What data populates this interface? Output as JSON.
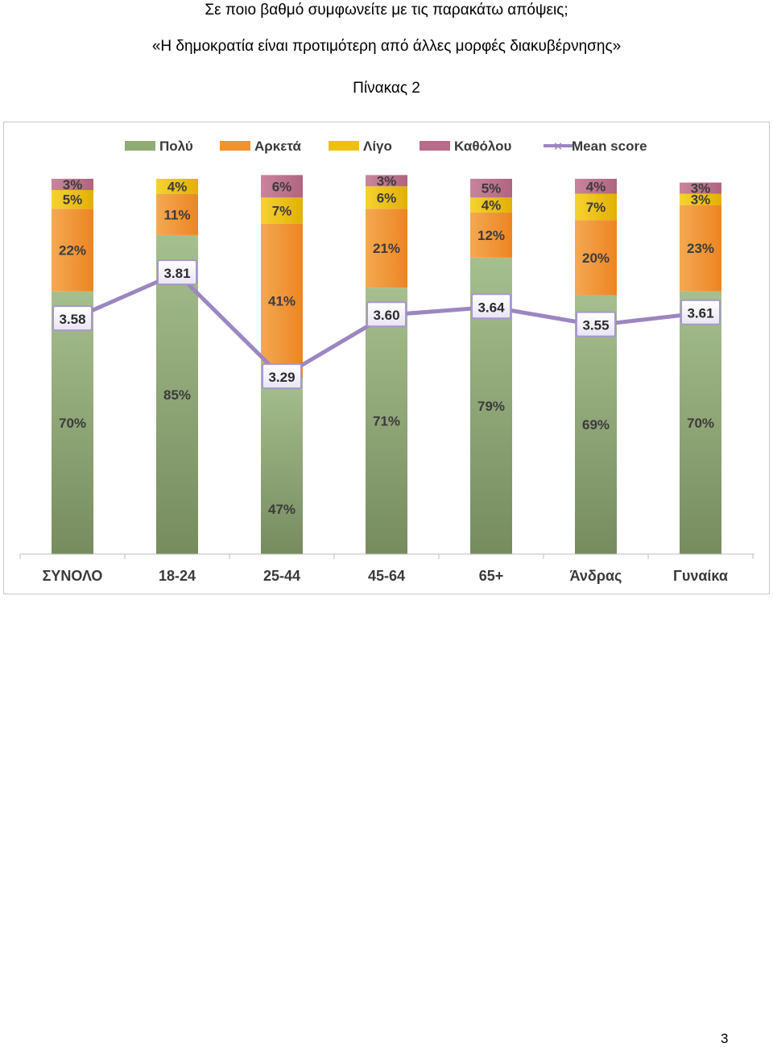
{
  "header": {
    "question": "Σε ποιο βαθμό συμφωνείτε με τις παρακάτω απόψεις;",
    "statement": "«Η δημοκρατία είναι προτιμότερη από άλλες μορφές διακυβέρνησης»",
    "table_title": "Πίνακας 2"
  },
  "page_number": "3",
  "chart_data": {
    "type": "bar",
    "stacked": true,
    "categories": [
      "ΣΥΝΟΛΟ",
      "18-24",
      "25-44",
      "45-64",
      "65+",
      "Άνδρας",
      "Γυναίκα"
    ],
    "series": [
      {
        "name": "Πολύ",
        "color": "#8fac74",
        "values": [
          70,
          85,
          47,
          71,
          79,
          69,
          70
        ]
      },
      {
        "name": "Αρκετά",
        "color": "#f0922e",
        "values": [
          22,
          11,
          41,
          21,
          12,
          20,
          23
        ]
      },
      {
        "name": "Λίγο",
        "color": "#eec110",
        "values": [
          5,
          4,
          7,
          6,
          4,
          7,
          3
        ]
      },
      {
        "name": "Καθόλου",
        "color": "#b86c89",
        "values": [
          3,
          null,
          6,
          3,
          5,
          4,
          3
        ]
      }
    ],
    "line_series": {
      "name": "Mean score",
      "color": "#9b86c2",
      "values": [
        3.58,
        3.81,
        3.29,
        3.6,
        3.64,
        3.55,
        3.61
      ],
      "labels": [
        "3.58",
        "3.81",
        "3.29",
        "3.60",
        "3.64",
        "3.55",
        "3.61"
      ]
    },
    "ylim": [
      0,
      100
    ],
    "legend_position": "top",
    "grid": false
  }
}
